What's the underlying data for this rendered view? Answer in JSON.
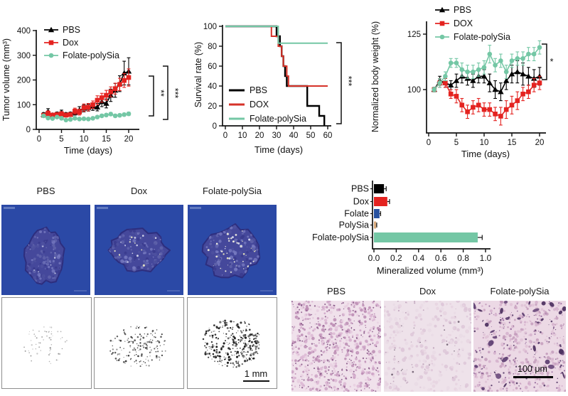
{
  "chart_data": [
    {
      "id": "tumor-volume",
      "type": "line",
      "xlabel": "Time (days)",
      "ylabel": "Tumor volume (mm³)",
      "xlim": [
        0,
        22
      ],
      "ylim": [
        0,
        400
      ],
      "xticks": [
        0,
        5,
        10,
        15,
        20
      ],
      "yticks": [
        0,
        100,
        200,
        300,
        400
      ],
      "x": [
        1,
        2,
        3,
        4,
        5,
        6,
        7,
        8,
        9,
        10,
        11,
        12,
        13,
        14,
        15,
        16,
        17,
        18,
        19,
        20
      ],
      "series": [
        {
          "name": "PBS",
          "color": "#000000",
          "marker": "triangle",
          "values": [
            60,
            72,
            58,
            62,
            68,
            60,
            62,
            68,
            78,
            85,
            88,
            92,
            90,
            112,
            105,
            138,
            158,
            185,
            228,
            235
          ],
          "errors": [
            8,
            12,
            8,
            8,
            10,
            8,
            8,
            10,
            14,
            14,
            14,
            15,
            15,
            20,
            18,
            25,
            28,
            32,
            48,
            55
          ]
        },
        {
          "name": "Dox",
          "color": "#e42320",
          "marker": "square",
          "values": [
            57,
            65,
            58,
            60,
            63,
            58,
            60,
            74,
            70,
            88,
            90,
            100,
            118,
            128,
            138,
            152,
            165,
            182,
            198,
            210
          ],
          "errors": [
            8,
            10,
            8,
            8,
            9,
            8,
            8,
            12,
            12,
            15,
            15,
            15,
            18,
            18,
            20,
            20,
            22,
            25,
            28,
            35
          ]
        },
        {
          "name": "Folate-polySia",
          "color": "#74c7a5",
          "marker": "circle",
          "values": [
            55,
            46,
            44,
            50,
            45,
            38,
            40,
            45,
            42,
            43,
            42,
            45,
            50,
            55,
            58,
            62,
            55,
            57,
            60,
            63
          ],
          "errors": [
            5,
            5,
            5,
            5,
            5,
            4,
            4,
            5,
            5,
            5,
            5,
            5,
            5,
            6,
            6,
            6,
            6,
            6,
            6,
            7
          ]
        }
      ],
      "significance": [
        "**",
        "***"
      ],
      "legend_position": "top-left"
    },
    {
      "id": "survival",
      "type": "step",
      "xlabel": "Time (days)",
      "ylabel": "Survival rate (%)",
      "xlim": [
        0,
        62
      ],
      "ylim": [
        0,
        100
      ],
      "xticks": [
        0,
        10,
        20,
        30,
        40,
        50,
        60
      ],
      "yticks": [
        0,
        20,
        40,
        60,
        80,
        100
      ],
      "series": [
        {
          "name": "PBS",
          "color": "#000000",
          "points": [
            [
              0,
              100
            ],
            [
              30,
              100
            ],
            [
              30,
              90
            ],
            [
              32,
              90
            ],
            [
              32,
              80
            ],
            [
              33,
              80
            ],
            [
              33,
              70
            ],
            [
              34,
              70
            ],
            [
              34,
              60
            ],
            [
              35,
              60
            ],
            [
              35,
              50
            ],
            [
              36,
              50
            ],
            [
              36,
              40
            ],
            [
              48,
              40
            ],
            [
              48,
              20
            ],
            [
              55,
              20
            ],
            [
              55,
              10
            ],
            [
              58,
              10
            ],
            [
              58,
              0
            ]
          ]
        },
        {
          "name": "DOX",
          "color": "#d63228",
          "points": [
            [
              0,
              100
            ],
            [
              27,
              100
            ],
            [
              27,
              90
            ],
            [
              31,
              90
            ],
            [
              31,
              80
            ],
            [
              33,
              80
            ],
            [
              33,
              70
            ],
            [
              34,
              70
            ],
            [
              34,
              60
            ],
            [
              36,
              60
            ],
            [
              36,
              50
            ],
            [
              37,
              50
            ],
            [
              37,
              40
            ],
            [
              60,
              40
            ]
          ]
        },
        {
          "name": "Folate-polySia",
          "color": "#74c7a5",
          "points": [
            [
              0,
              100
            ],
            [
              31,
              100
            ],
            [
              31,
              83
            ],
            [
              60,
              83
            ]
          ]
        }
      ],
      "significance": [
        "***"
      ],
      "legend_position": "inside-left"
    },
    {
      "id": "body-weight",
      "type": "line",
      "xlabel": "Time (days)",
      "ylabel": "Normalized body weight (%)",
      "xlim": [
        0,
        21
      ],
      "ylim": [
        82,
        132
      ],
      "xticks": [
        0,
        5,
        10,
        15,
        20
      ],
      "yticks": [
        100,
        125
      ],
      "x": [
        1,
        2,
        3,
        4,
        5,
        6,
        7,
        8,
        9,
        10,
        11,
        12,
        13,
        14,
        15,
        16,
        17,
        18,
        19,
        20
      ],
      "series": [
        {
          "name": "PBS",
          "color": "#000000",
          "marker": "triangle",
          "values": [
            100,
            104,
            103,
            102,
            104,
            106,
            105,
            104,
            106,
            106,
            103,
            100,
            99,
            104,
            107,
            108,
            107,
            106,
            105,
            106
          ],
          "errors": [
            1,
            2,
            2,
            2,
            3,
            3,
            3,
            3,
            3,
            3,
            4,
            4,
            4,
            4,
            4,
            5,
            5,
            4,
            4,
            4
          ]
        },
        {
          "name": "DOX",
          "color": "#e42320",
          "marker": "square",
          "values": [
            100,
            103,
            103,
            98,
            97,
            93,
            90,
            92,
            93,
            91,
            91,
            89,
            88,
            91,
            93,
            95,
            98,
            99,
            102,
            103
          ],
          "errors": [
            1,
            2,
            2,
            2,
            3,
            3,
            3,
            3,
            3,
            3,
            3,
            3,
            4,
            4,
            4,
            4,
            3,
            3,
            3,
            3
          ]
        },
        {
          "name": "Folate-polySia",
          "color": "#74c7a5",
          "marker": "circle",
          "values": [
            100,
            103,
            106,
            112,
            112,
            109,
            108,
            108,
            109,
            110,
            116,
            111,
            113,
            108,
            113,
            114,
            114,
            116,
            116,
            119
          ],
          "errors": [
            1,
            2,
            2,
            2,
            2,
            3,
            3,
            3,
            3,
            3,
            4,
            3,
            3,
            3,
            3,
            3,
            3,
            3,
            3,
            3
          ]
        }
      ],
      "significance": [
        "*"
      ],
      "legend_position": "top"
    },
    {
      "id": "mineralized-volume",
      "type": "bar",
      "orientation": "horizontal",
      "xlabel": "Mineralized volume (mm³)",
      "xlim": [
        0,
        1.05
      ],
      "xticks": [
        0,
        0.2,
        0.4,
        0.6,
        0.8,
        1.0
      ],
      "categories": [
        "PBS",
        "Dox",
        "Folate",
        "PolySia",
        "Folate-polySia"
      ],
      "values": [
        0.09,
        0.12,
        0.05,
        0.02,
        0.93
      ],
      "errors": [
        0.02,
        0.02,
        0.01,
        0.005,
        0.04
      ],
      "colors": [
        "#000000",
        "#e42320",
        "#27519f",
        "#d8a97b",
        "#74c7a5"
      ]
    }
  ],
  "microct": {
    "labels": [
      "PBS",
      "Dox",
      "Folate-polySia"
    ]
  },
  "dot_panels": {
    "scale_bar": "1 mm"
  },
  "histology": {
    "labels": [
      "PBS",
      "Dox",
      "Folate-polySia"
    ],
    "scale_bar": "100 μm"
  }
}
